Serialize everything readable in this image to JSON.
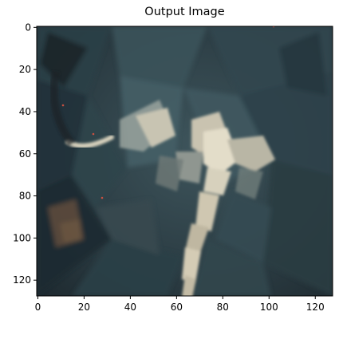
{
  "title": "Output Image",
  "axes": {
    "x_ticks": [
      "0",
      "20",
      "40",
      "60",
      "80",
      "100",
      "120"
    ],
    "y_ticks": [
      "0",
      "20",
      "40",
      "60",
      "80",
      "100",
      "120"
    ],
    "x_range": [
      0,
      128
    ],
    "y_range": [
      0,
      128
    ]
  },
  "image": {
    "description_colors": {
      "background": "#2a3a40",
      "dark": "#1b272d",
      "teal": "#3a5560",
      "light": "#c7c2b0",
      "highlight": "#e8e2cf",
      "warm": "#6a5440"
    }
  }
}
